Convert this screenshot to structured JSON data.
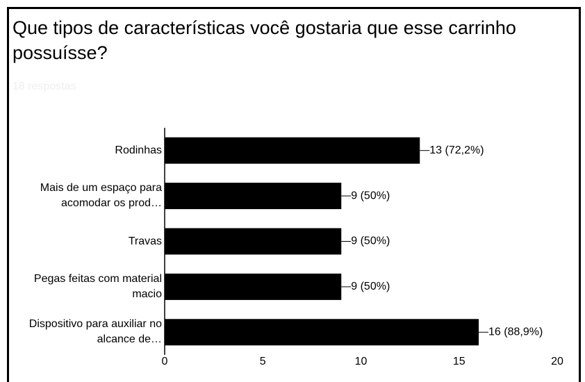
{
  "chart_data": {
    "type": "bar",
    "orientation": "horizontal",
    "title": "Que tipos de características você gostaria que esse carrinho possuísse?",
    "subtitle": "18 respostas",
    "categories": [
      "Rodinhas",
      "Mais de um espaço para acomodar os prod…",
      "Travas",
      "Pegas feitas com material macio",
      "Dispositivo para auxiliar no alcance de…"
    ],
    "values": [
      13,
      9,
      9,
      9,
      16
    ],
    "value_labels": [
      "13 (72,2%)",
      "9 (50%)",
      "9 (50%)",
      "9 (50%)",
      "16 (88,9%)"
    ],
    "color": "#000000",
    "xlim": [
      0,
      20
    ],
    "xticks": [
      0,
      5,
      10,
      15,
      20
    ],
    "grid": false
  }
}
